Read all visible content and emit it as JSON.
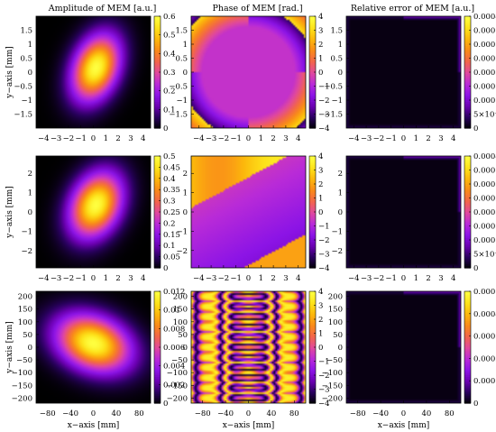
{
  "colors": {
    "colormap": [
      "#000000",
      "#28005c",
      "#6a00b0",
      "#8c14e6",
      "#b92bd8",
      "#e0489e",
      "#f2654c",
      "#f98a1a",
      "#fcb70c",
      "#fde21a",
      "#ffff40"
    ],
    "axis": "#000000"
  },
  "chart_data": [
    {
      "type": "heatmap",
      "title": "Amplitude of MEM [a.u.]",
      "xlabel": "",
      "ylabel": "y−axis [mm]",
      "field": "amplitude",
      "center": [
        0.2,
        0.15
      ],
      "sigma": [
        1.35,
        0.75
      ],
      "rotation_deg": 15,
      "xlim": [
        -4.6,
        4.6
      ],
      "ylim": [
        -2.0,
        2.0
      ],
      "x_ticks": [
        "−4",
        "−3",
        "−2",
        "−1",
        "0",
        "1",
        "2",
        "3",
        "4"
      ],
      "y_ticks": [
        "1.5",
        "1",
        "0.5",
        "0",
        "−0.5",
        "−1",
        "−1.5"
      ],
      "colorbar_range": [
        0,
        0.6
      ],
      "colorbar_ticks": [
        "0.6",
        "0.5",
        "0.4",
        "0.3",
        "0.2",
        "0.1",
        "0"
      ]
    },
    {
      "type": "heatmap",
      "title": "Phase of MEM [rad.]",
      "xlabel": "",
      "ylabel": "",
      "field": "phase-saddle",
      "xlim": [
        -4.6,
        4.6
      ],
      "ylim": [
        -2.0,
        2.0
      ],
      "x_ticks": [
        "−4",
        "−3",
        "−2",
        "−1",
        "0",
        "1",
        "2",
        "3",
        "4"
      ],
      "y_ticks": [
        "1.5",
        "1",
        "0.5",
        "0",
        "−0.5",
        "−1",
        "−1.5"
      ],
      "colorbar_range": [
        -4,
        4
      ],
      "colorbar_ticks": [
        "4",
        "3",
        "2",
        "1",
        "0",
        "−1",
        "−2",
        "−3",
        "−4"
      ]
    },
    {
      "type": "heatmap",
      "title": "Relative error of MEM [a.u.]",
      "xlabel": "",
      "ylabel": "",
      "field": "error",
      "xlim": [
        -4.6,
        4.6
      ],
      "ylim": [
        -2.0,
        2.0
      ],
      "x_ticks": [
        "−4",
        "−3",
        "−2",
        "−1",
        "0",
        "1",
        "2",
        "3",
        "4"
      ],
      "y_ticks": [
        "1.5",
        "1",
        "0.5",
        "0",
        "−0.5",
        "−1",
        "−1.5"
      ],
      "colorbar_range": [
        0,
        0.0004
      ],
      "colorbar_ticks": [
        "0.0004",
        "0.00035",
        "0.0003",
        "0.00025",
        "0.0002",
        "0.00015",
        "0.0001",
        "5×10⁻⁵",
        "0"
      ]
    },
    {
      "type": "heatmap",
      "title": "",
      "xlabel": "",
      "ylabel": "y−axis [mm]",
      "field": "amplitude",
      "center": [
        0.2,
        0.35
      ],
      "sigma": [
        1.5,
        1.05
      ],
      "rotation_deg": 25,
      "xlim": [
        -4.6,
        4.6
      ],
      "ylim": [
        -2.9,
        2.9
      ],
      "x_ticks": [
        "−4",
        "−3",
        "−2",
        "−1",
        "0",
        "1",
        "2",
        "3",
        "4"
      ],
      "y_ticks": [
        "2",
        "1",
        "0",
        "−1",
        "−2"
      ],
      "colorbar_range": [
        0,
        0.5
      ],
      "colorbar_ticks": [
        "0.5",
        "0.45",
        "0.4",
        "0.35",
        "0.3",
        "0.25",
        "0.2",
        "0.15",
        "0.1",
        "0.05",
        "0"
      ]
    },
    {
      "type": "heatmap",
      "title": "",
      "xlabel": "",
      "ylabel": "",
      "field": "phase-band",
      "xlim": [
        -4.6,
        4.6
      ],
      "ylim": [
        -2.9,
        2.9
      ],
      "x_ticks": [
        "−4",
        "−3",
        "−2",
        "−1",
        "0",
        "1",
        "2",
        "3",
        "4"
      ],
      "y_ticks": [
        "2",
        "1",
        "0",
        "−1",
        "−2"
      ],
      "colorbar_range": [
        -4,
        4
      ],
      "colorbar_ticks": [
        "4",
        "3",
        "2",
        "1",
        "0",
        "−1",
        "−2",
        "−3",
        "−4"
      ]
    },
    {
      "type": "heatmap",
      "title": "",
      "xlabel": "",
      "ylabel": "",
      "field": "error",
      "xlim": [
        -4.6,
        4.6
      ],
      "ylim": [
        -2.9,
        2.9
      ],
      "x_ticks": [
        "−4",
        "−3",
        "−2",
        "−1",
        "0",
        "1",
        "2",
        "3",
        "4"
      ],
      "y_ticks": [
        "2",
        "1",
        "0",
        "−1",
        "−2"
      ],
      "colorbar_range": [
        0,
        0.0004
      ],
      "colorbar_ticks": [
        "0.0004",
        "0.00035",
        "0.0003",
        "0.00025",
        "0.0002",
        "0.00015",
        "0.0001",
        "5×10⁻⁵",
        "0"
      ]
    },
    {
      "type": "heatmap",
      "title": "",
      "xlabel": "x−axis [mm]",
      "ylabel": "y−axis [mm]",
      "field": "amplitude",
      "center": [
        0,
        15
      ],
      "sigma": [
        42,
        78
      ],
      "rotation_deg": 12,
      "xlim": [
        -100,
        100
      ],
      "ylim": [
        -220,
        220
      ],
      "x_ticks": [
        "−80",
        "−40",
        "0",
        "40",
        "80"
      ],
      "y_ticks": [
        "200",
        "150",
        "100",
        "50",
        "0",
        "−50",
        "−100",
        "−150",
        "−200"
      ],
      "colorbar_range": [
        0,
        0.012
      ],
      "colorbar_ticks": [
        "0.012",
        "0.01",
        "0.008",
        "0.006",
        "0.004",
        "0.002",
        "0"
      ]
    },
    {
      "type": "heatmap",
      "title": "",
      "xlabel": "x−axis [mm]",
      "ylabel": "",
      "field": "phase-rings",
      "xlim": [
        -100,
        100
      ],
      "ylim": [
        -220,
        220
      ],
      "x_ticks": [
        "−80",
        "−40",
        "0",
        "40",
        "80"
      ],
      "y_ticks": [
        "200",
        "150",
        "100",
        "50",
        "0",
        "−50",
        "−100",
        "−150",
        "−200"
      ],
      "colorbar_range": [
        -4,
        4
      ],
      "colorbar_ticks": [
        "4",
        "3",
        "2",
        "1",
        "0",
        "−1",
        "−2",
        "−3",
        "−4"
      ]
    },
    {
      "type": "heatmap",
      "title": "",
      "xlabel": "x−axis [mm]",
      "ylabel": "",
      "field": "error",
      "xlim": [
        -100,
        100
      ],
      "ylim": [
        -220,
        220
      ],
      "x_ticks": [
        "−80",
        "−40",
        "0",
        "40",
        "80"
      ],
      "y_ticks": [
        "200",
        "150",
        "100",
        "50",
        "0",
        "−50",
        "−100",
        "−150",
        "−200"
      ],
      "colorbar_range": [
        0,
        0.0005
      ],
      "colorbar_ticks": [
        "0.0005",
        "0.0004",
        "0.0003",
        "0.0002",
        "0.0001",
        "0"
      ]
    }
  ]
}
